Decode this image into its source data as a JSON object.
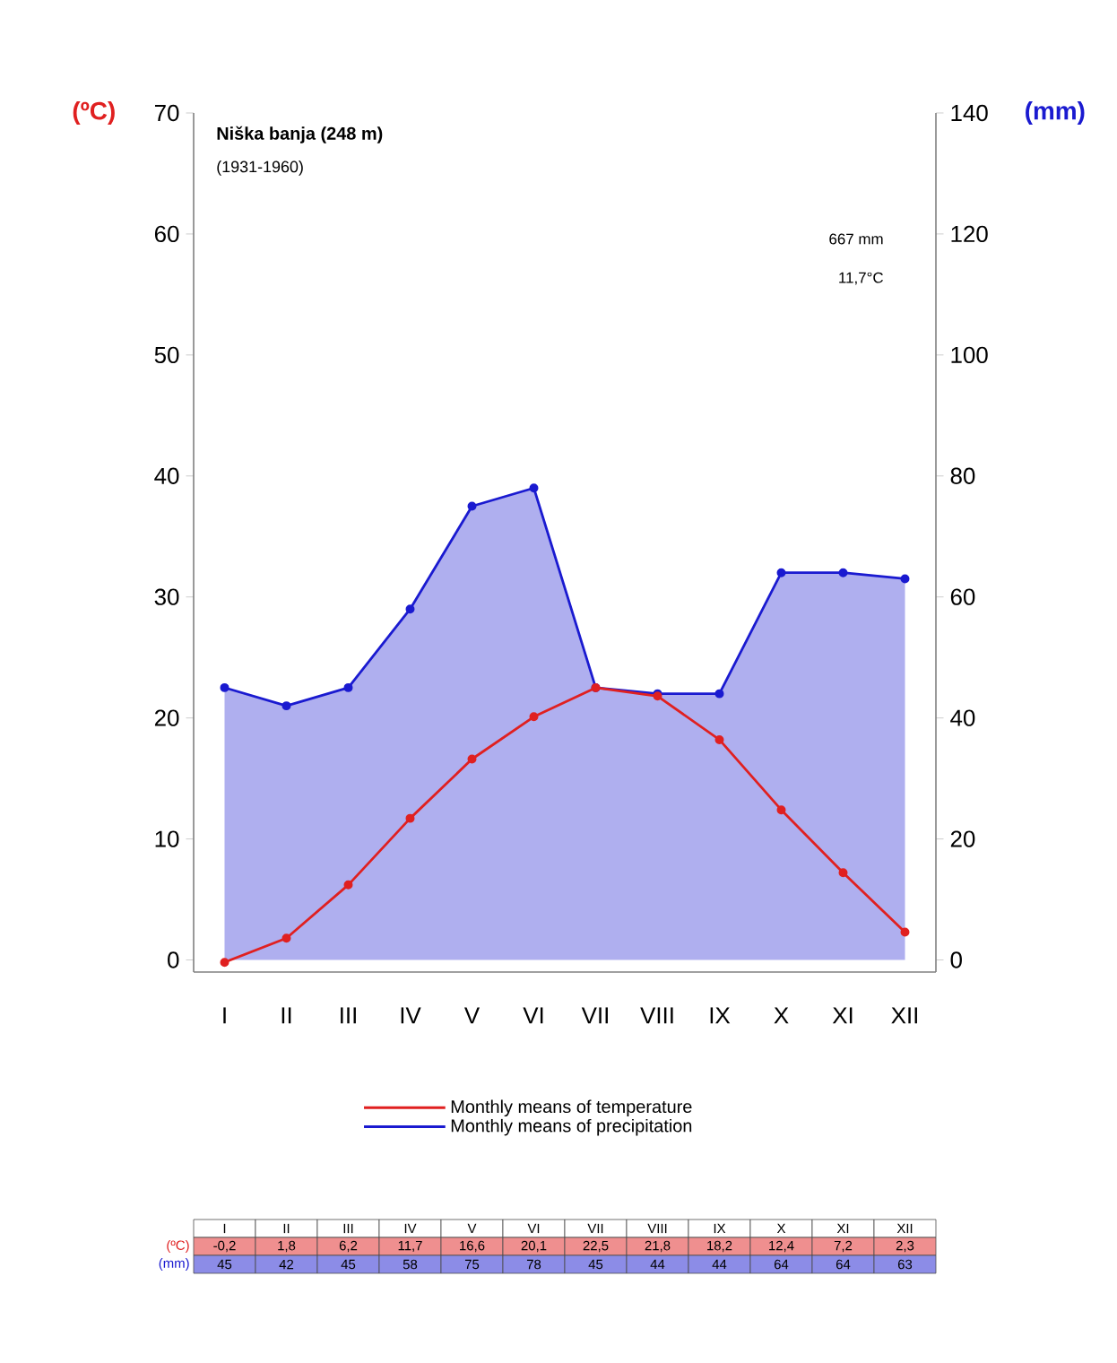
{
  "chart_data": {
    "type": "line",
    "title": "Niška banja (248 m)",
    "subtitle": "(1931-1960)",
    "ylabel": "(ºC)",
    "y2label": "(mm)",
    "categories": [
      "I",
      "II",
      "III",
      "IV",
      "V",
      "VI",
      "VII",
      "VIII",
      "IX",
      "X",
      "XI",
      "XII"
    ],
    "series": [
      {
        "name": "Monthly means of temperature",
        "color": "#e02020",
        "axis": "y",
        "values": [
          -0.2,
          1.8,
          6.2,
          11.7,
          16.6,
          20.1,
          22.5,
          21.8,
          18.2,
          12.4,
          7.2,
          2.3
        ],
        "value_labels": [
          "-0,2",
          "1,8",
          "6,2",
          "11,7",
          "16,6",
          "20,1",
          "22,5",
          "21,8",
          "18,2",
          "12,4",
          "7,2",
          "2,3"
        ]
      },
      {
        "name": "Monthly means of precipitation",
        "color": "#1a1ad0",
        "type": "area",
        "axis": "y2",
        "values": [
          45,
          42,
          45,
          58,
          75,
          78,
          45,
          44,
          44,
          64,
          64,
          63
        ],
        "value_labels": [
          "45",
          "42",
          "45",
          "58",
          "75",
          "78",
          "45",
          "44",
          "44",
          "64",
          "64",
          "63"
        ]
      }
    ],
    "ylim": [
      -1,
      70
    ],
    "yticks": [
      0,
      10,
      20,
      30,
      40,
      50,
      60,
      70
    ],
    "y2lim": [
      -2,
      140
    ],
    "y2ticks": [
      0,
      20,
      40,
      60,
      80,
      100,
      120,
      140
    ],
    "annotations": [
      "667 mm",
      "11,7°C"
    ],
    "legend": "bottom",
    "marker": "circle",
    "line_style": "solid",
    "grid": false
  }
}
